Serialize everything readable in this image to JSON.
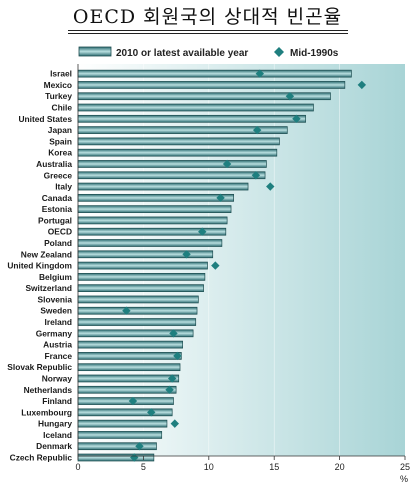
{
  "chart_data": {
    "type": "bar",
    "title": "OECD 회원국의 상대적 빈곤율",
    "unit_label": "%",
    "legend": {
      "bar_label": "2010 or latest available year",
      "marker_label": "Mid-1990s"
    },
    "xlim": [
      0,
      25
    ],
    "x_ticks": [
      "0",
      "5",
      "10",
      "15",
      "20",
      "25"
    ],
    "categories": [
      "Israel",
      "Mexico",
      "Turkey",
      "Chile",
      "United States",
      "Japan",
      "Spain",
      "Korea",
      "Australia",
      "Greece",
      "Italy",
      "Canada",
      "Estonia",
      "Portugal",
      "OECD",
      "Poland",
      "New Zealand",
      "United Kingdom",
      "Belgium",
      "Switzerland",
      "Slovenia",
      "Sweden",
      "Ireland",
      "Germany",
      "Austria",
      "France",
      "Slovak Republic",
      "Norway",
      "Netherlands",
      "Finland",
      "Luxembourg",
      "Hungary",
      "Iceland",
      "Denmark",
      "Czech Republic"
    ],
    "series": [
      {
        "name": "2010 or latest available year",
        "values": [
          20.9,
          20.4,
          19.3,
          18.0,
          17.4,
          16.0,
          15.4,
          15.2,
          14.4,
          14.3,
          13.0,
          11.9,
          11.7,
          11.4,
          11.3,
          11.0,
          10.3,
          9.9,
          9.7,
          9.6,
          9.2,
          9.1,
          9.0,
          8.8,
          8.0,
          7.9,
          7.8,
          7.7,
          7.5,
          7.3,
          7.2,
          6.8,
          6.4,
          6.0,
          5.8
        ]
      },
      {
        "name": "Mid-1990s",
        "values": [
          13.9,
          21.7,
          16.2,
          null,
          16.7,
          13.7,
          null,
          null,
          11.4,
          13.6,
          14.7,
          10.9,
          null,
          null,
          9.5,
          null,
          8.3,
          10.5,
          null,
          null,
          null,
          3.7,
          null,
          7.3,
          null,
          7.6,
          null,
          7.2,
          7.0,
          4.2,
          5.6,
          7.4,
          null,
          4.7,
          4.3
        ]
      }
    ],
    "colors": {
      "bar_dark": "#2e6d72",
      "bar_light": "#b9dfe0",
      "marker": "#1f7f7f",
      "plot_bg_left": "#ffffff",
      "plot_bg_right": "#a8d4d6"
    }
  }
}
